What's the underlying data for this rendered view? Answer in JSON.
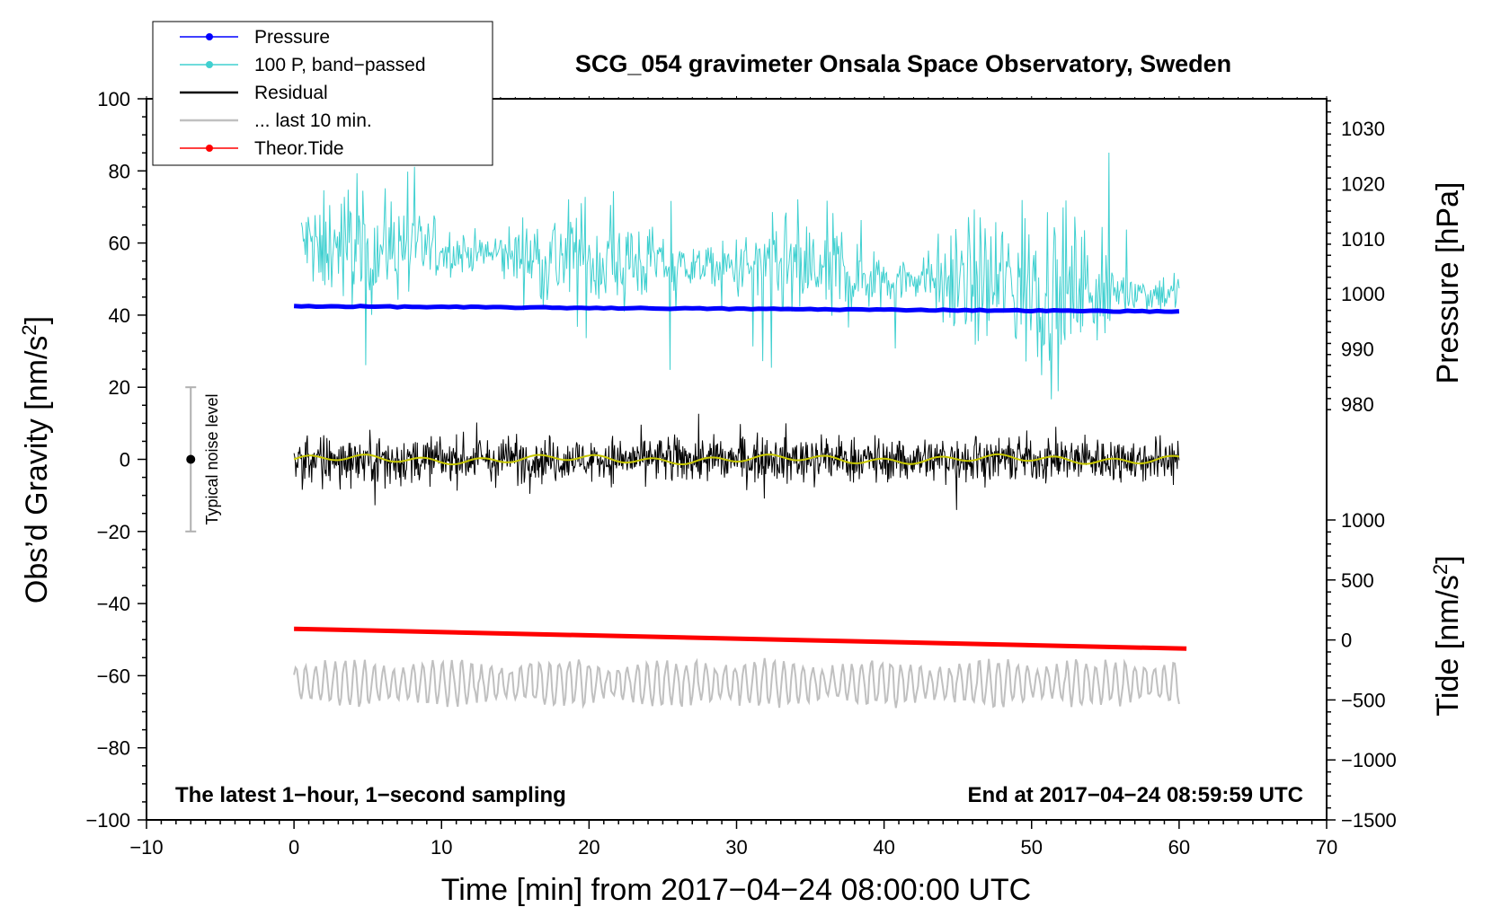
{
  "chart_data": {
    "type": "line",
    "title": "SCG_054 gravimeter Onsala Space Observatory, Sweden",
    "xlabel": "Time [min] from 2017−04−24 08:00:00 UTC",
    "ylabel_left": "Obs’d Gravity [nm/s",
    "ylabel_left_sup": "2",
    "ylabel_left_close": "]",
    "ylabel_right_pressure": "Pressure [hPa]",
    "ylabel_right_tide": "Tide [nm/s",
    "ylabel_right_tide_sup": "2",
    "ylabel_right_tide_close": "]",
    "xlim": [
      -10,
      70
    ],
    "ylim_left": [
      -100,
      100
    ],
    "xticks": [
      -10,
      0,
      10,
      20,
      30,
      40,
      50,
      60,
      70
    ],
    "xtick_labels": [
      "−10",
      "0",
      "10",
      "20",
      "30",
      "40",
      "50",
      "60",
      "70"
    ],
    "yticks_left": [
      100,
      80,
      60,
      40,
      20,
      0,
      -20,
      -40,
      -60,
      -80,
      -100
    ],
    "ytick_labels_left": [
      "100",
      "80",
      "60",
      "40",
      "20",
      "0",
      "−20",
      "−40",
      "−60",
      "−80",
      "−100"
    ],
    "pressure_axis": {
      "ticks": [
        980,
        990,
        1000,
        1010,
        1020,
        1030
      ],
      "tick_labels": [
        "980",
        "990",
        "1000",
        "1010",
        "1020",
        "1030"
      ]
    },
    "tide_axis": {
      "ticks": [
        1000,
        500,
        0,
        -500,
        -1000,
        -1500
      ],
      "tick_labels": [
        "1000",
        "500",
        "0",
        "−500",
        "−1000",
        "−1500"
      ]
    },
    "note_left": "The latest 1−hour, 1−second sampling",
    "note_right": "End at 2017−04−24 08:59:59 UTC",
    "noise_label": "Typical noise level",
    "noise_bar": {
      "x": -7,
      "center": 0,
      "low": -20,
      "high": 20
    },
    "legend": [
      {
        "label": "Pressure",
        "color": "#0000ff",
        "marker": true
      },
      {
        "label": "100 P, band−passed",
        "color": "#40d0d0",
        "marker": true
      },
      {
        "label": "Residual",
        "color": "#000000",
        "marker": false
      },
      {
        "label": "... last 10 min.",
        "color": "#c0c0c0",
        "marker": false
      },
      {
        "label": "Theor.Tide",
        "color": "#ff0000",
        "marker": true
      }
    ],
    "series": [
      {
        "name": "Pressure",
        "color": "#0000ff",
        "start": [
          0,
          42.5
        ],
        "end": [
          60,
          41.0
        ]
      },
      {
        "name": "100 P, band-passed",
        "color": "#40d0d0",
        "x_range": [
          0.5,
          60
        ],
        "center_start": 60,
        "center_end": 46
      },
      {
        "name": "Residual",
        "color": "#000000",
        "x_range": [
          0,
          60
        ],
        "center": 0
      },
      {
        "name": "Residual smoothed",
        "color": "#c8c800",
        "x_range": [
          0,
          60
        ],
        "center": 0
      },
      {
        "name": "... last 10 min.",
        "color": "#c0c0c0",
        "x_range": [
          0,
          60
        ],
        "center": -62
      },
      {
        "name": "Theor.Tide",
        "color": "#ff0000",
        "start": [
          0,
          -47
        ],
        "end": [
          60.5,
          -52.5
        ]
      }
    ]
  }
}
